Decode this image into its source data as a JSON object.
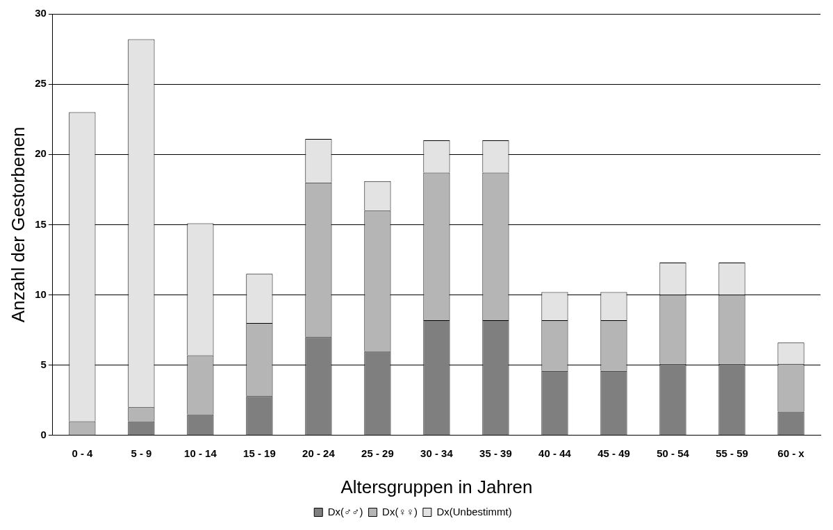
{
  "chart_data": {
    "type": "bar",
    "stacked": true,
    "xlabel": "Altersgruppen in Jahren",
    "ylabel": "Anzahl der Gestorbenen",
    "categories": [
      "0 - 4",
      "5 - 9",
      "10 - 14",
      "15 - 19",
      "20 - 24",
      "25 - 29",
      "30 - 34",
      "35 - 39",
      "40 - 44",
      "45 - 49",
      "50 - 54",
      "55 - 59",
      "60 - x"
    ],
    "series": [
      {
        "name": "Dx(♂♂)",
        "color": "#7f7f7f",
        "values": [
          0,
          1,
          1.5,
          2.8,
          7,
          6,
          8.2,
          8.2,
          4.6,
          4.6,
          5.1,
          5.1,
          1.7
        ]
      },
      {
        "name": "Dx(♀♀)",
        "color": "#b5b5b5",
        "values": [
          1,
          1,
          4.2,
          5.2,
          11,
          10,
          10.5,
          10.5,
          3.6,
          3.6,
          4.9,
          4.9,
          3.4
        ]
      },
      {
        "name": "Dx(Unbestimmt)",
        "color": "#e3e3e3",
        "values": [
          22,
          26.2,
          9.4,
          3.5,
          3.1,
          2.1,
          2.3,
          2.3,
          2,
          2,
          2.3,
          2.3,
          1.5
        ]
      }
    ],
    "ylim": [
      0,
      30
    ],
    "yticks": [
      0,
      5,
      10,
      15,
      20,
      25,
      30
    ],
    "grid": "y",
    "legend": "bottom"
  }
}
